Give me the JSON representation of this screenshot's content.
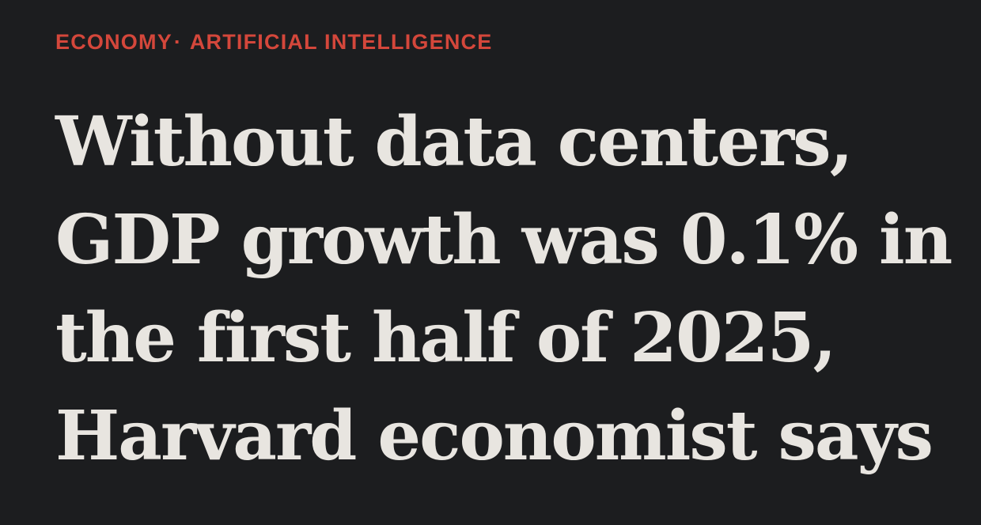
{
  "kicker": {
    "section": "ECONOMY",
    "separator": "·",
    "topic": "ARTIFICIAL INTELLIGENCE",
    "color": "#d4473b"
  },
  "headline": {
    "lines": [
      "Without data centers,",
      "GDP growth was 0.1% in",
      "the first half of 2025,",
      "Harvard economist says"
    ],
    "color": "#e8e5e0"
  },
  "background_color": "#1c1d1f"
}
